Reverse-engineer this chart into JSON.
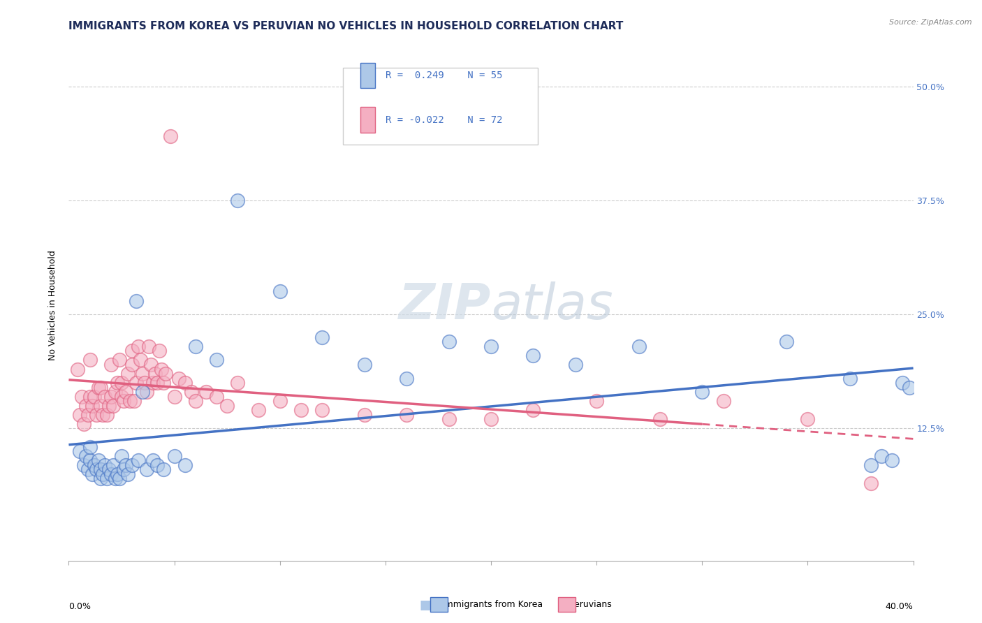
{
  "title": "IMMIGRANTS FROM KOREA VS PERUVIAN NO VEHICLES IN HOUSEHOLD CORRELATION CHART",
  "source": "Source: ZipAtlas.com",
  "ylabel": "No Vehicles in Household",
  "yticks": [
    0.0,
    0.125,
    0.25,
    0.375,
    0.5
  ],
  "ytick_labels": [
    "",
    "12.5%",
    "25.0%",
    "37.5%",
    "50.0%"
  ],
  "xmin": 0.0,
  "xmax": 0.4,
  "ymin": -0.02,
  "ymax": 0.54,
  "legend_korea_R": "0.249",
  "legend_korea_N": "55",
  "legend_peru_R": "-0.022",
  "legend_peru_N": "72",
  "legend_label_korea": "Immigrants from Korea",
  "legend_label_peru": "Peruvians",
  "color_korea": "#adc8e8",
  "color_peru": "#f4afc2",
  "color_korea_line": "#4472c4",
  "color_peru_line": "#e06080",
  "korea_x": [
    0.005,
    0.007,
    0.008,
    0.009,
    0.01,
    0.01,
    0.011,
    0.012,
    0.013,
    0.014,
    0.015,
    0.015,
    0.016,
    0.017,
    0.018,
    0.019,
    0.02,
    0.021,
    0.022,
    0.023,
    0.024,
    0.025,
    0.026,
    0.027,
    0.028,
    0.03,
    0.032,
    0.033,
    0.035,
    0.037,
    0.04,
    0.042,
    0.045,
    0.05,
    0.055,
    0.06,
    0.07,
    0.08,
    0.1,
    0.12,
    0.14,
    0.16,
    0.18,
    0.2,
    0.22,
    0.24,
    0.27,
    0.3,
    0.34,
    0.37,
    0.38,
    0.385,
    0.39,
    0.395,
    0.398
  ],
  "korea_y": [
    0.1,
    0.085,
    0.095,
    0.08,
    0.09,
    0.105,
    0.075,
    0.085,
    0.08,
    0.09,
    0.07,
    0.08,
    0.075,
    0.085,
    0.07,
    0.08,
    0.075,
    0.085,
    0.07,
    0.075,
    0.07,
    0.095,
    0.08,
    0.085,
    0.075,
    0.085,
    0.265,
    0.09,
    0.165,
    0.08,
    0.09,
    0.085,
    0.08,
    0.095,
    0.085,
    0.215,
    0.2,
    0.375,
    0.275,
    0.225,
    0.195,
    0.18,
    0.22,
    0.215,
    0.205,
    0.195,
    0.215,
    0.165,
    0.22,
    0.18,
    0.085,
    0.095,
    0.09,
    0.175,
    0.17
  ],
  "peru_x": [
    0.004,
    0.005,
    0.006,
    0.007,
    0.008,
    0.009,
    0.01,
    0.01,
    0.011,
    0.012,
    0.013,
    0.014,
    0.015,
    0.015,
    0.016,
    0.017,
    0.018,
    0.019,
    0.02,
    0.02,
    0.021,
    0.022,
    0.023,
    0.024,
    0.025,
    0.025,
    0.026,
    0.027,
    0.028,
    0.029,
    0.03,
    0.03,
    0.031,
    0.032,
    0.033,
    0.034,
    0.035,
    0.036,
    0.037,
    0.038,
    0.039,
    0.04,
    0.041,
    0.042,
    0.043,
    0.044,
    0.045,
    0.046,
    0.048,
    0.05,
    0.052,
    0.055,
    0.058,
    0.06,
    0.065,
    0.07,
    0.075,
    0.08,
    0.09,
    0.1,
    0.11,
    0.12,
    0.14,
    0.16,
    0.18,
    0.2,
    0.22,
    0.25,
    0.28,
    0.31,
    0.35,
    0.38
  ],
  "peru_y": [
    0.19,
    0.14,
    0.16,
    0.13,
    0.15,
    0.14,
    0.16,
    0.2,
    0.15,
    0.16,
    0.14,
    0.17,
    0.15,
    0.17,
    0.14,
    0.16,
    0.14,
    0.15,
    0.16,
    0.195,
    0.15,
    0.165,
    0.175,
    0.2,
    0.16,
    0.175,
    0.155,
    0.165,
    0.185,
    0.155,
    0.21,
    0.195,
    0.155,
    0.175,
    0.215,
    0.2,
    0.185,
    0.175,
    0.165,
    0.215,
    0.195,
    0.175,
    0.185,
    0.175,
    0.21,
    0.19,
    0.175,
    0.185,
    0.445,
    0.16,
    0.18,
    0.175,
    0.165,
    0.155,
    0.165,
    0.16,
    0.15,
    0.175,
    0.145,
    0.155,
    0.145,
    0.145,
    0.14,
    0.14,
    0.135,
    0.135,
    0.145,
    0.155,
    0.135,
    0.155,
    0.135,
    0.065
  ],
  "background_color": "#ffffff",
  "grid_color": "#c0c0c0",
  "title_fontsize": 11,
  "axis_label_fontsize": 9,
  "tick_fontsize": 9
}
